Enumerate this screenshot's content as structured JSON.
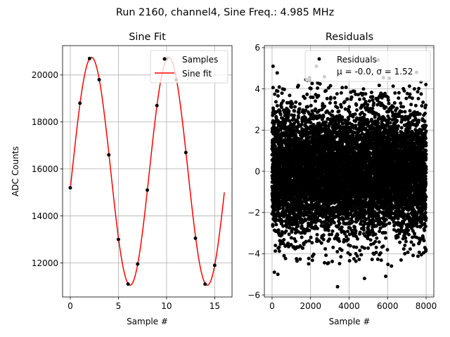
{
  "suptitle": "Run 2160, channel4, Sine Freq.: 4.985 MHz",
  "chart_data": [
    {
      "type": "line",
      "title": "Sine Fit",
      "xlabel": "Sample #",
      "ylabel": "ADC Counts",
      "xlim": [
        -0.8,
        16.8
      ],
      "ylim": [
        10550,
        21250
      ],
      "xticks": [
        0,
        5,
        10,
        15
      ],
      "yticks": [
        12000,
        14000,
        16000,
        18000,
        20000
      ],
      "grid": true,
      "legend": {
        "placement": "top-right",
        "entries": [
          "Samples",
          "Sine fit"
        ]
      },
      "series": [
        {
          "name": "Samples",
          "kind": "scatter",
          "color": "#000000",
          "x": [
            0,
            1,
            2,
            3,
            4,
            5,
            6,
            7,
            8,
            9,
            10,
            11,
            12,
            13,
            14,
            15
          ],
          "y": [
            15200,
            18800,
            20700,
            19800,
            16600,
            13000,
            11100,
            11950,
            15100,
            18700,
            20700,
            19800,
            16700,
            13050,
            11100,
            11900
          ]
        },
        {
          "name": "Sine fit",
          "kind": "line",
          "color": "#ff0000",
          "model": {
            "offset": 15900,
            "amplitude": 4850,
            "period": 8.02,
            "phase": -0.155,
            "x_range": [
              0,
              16
            ]
          }
        }
      ]
    },
    {
      "type": "scatter",
      "title": "Residuals",
      "xlabel": "Sample #",
      "ylabel": "",
      "xlim": [
        -400,
        8400
      ],
      "ylim": [
        -6.1,
        6.1
      ],
      "xticks": [
        0,
        2000,
        4000,
        6000,
        8000
      ],
      "yticks": [
        -6,
        -4,
        -2,
        0,
        2,
        4,
        6
      ],
      "grid": true,
      "legend": {
        "placement": "top-right",
        "entries": [
          "Residuals",
          "μ = -0.0, σ = 1.52"
        ]
      },
      "series": [
        {
          "name": "Residuals",
          "color": "#000000",
          "mu": -0.0,
          "sigma": 1.52,
          "n_points": 8000,
          "x_range": [
            0,
            8000
          ],
          "outliers": [
            [
              50,
              5.1
            ],
            [
              2300,
              5.1
            ],
            [
              5500,
              5.4
            ],
            [
              120,
              -4.9
            ],
            [
              300,
              -5.0
            ],
            [
              3400,
              -5.6
            ],
            [
              4800,
              -5.2
            ],
            [
              5900,
              -5.1
            ],
            [
              7500,
              4.8
            ],
            [
              6200,
              -4.6
            ]
          ]
        }
      ]
    }
  ]
}
